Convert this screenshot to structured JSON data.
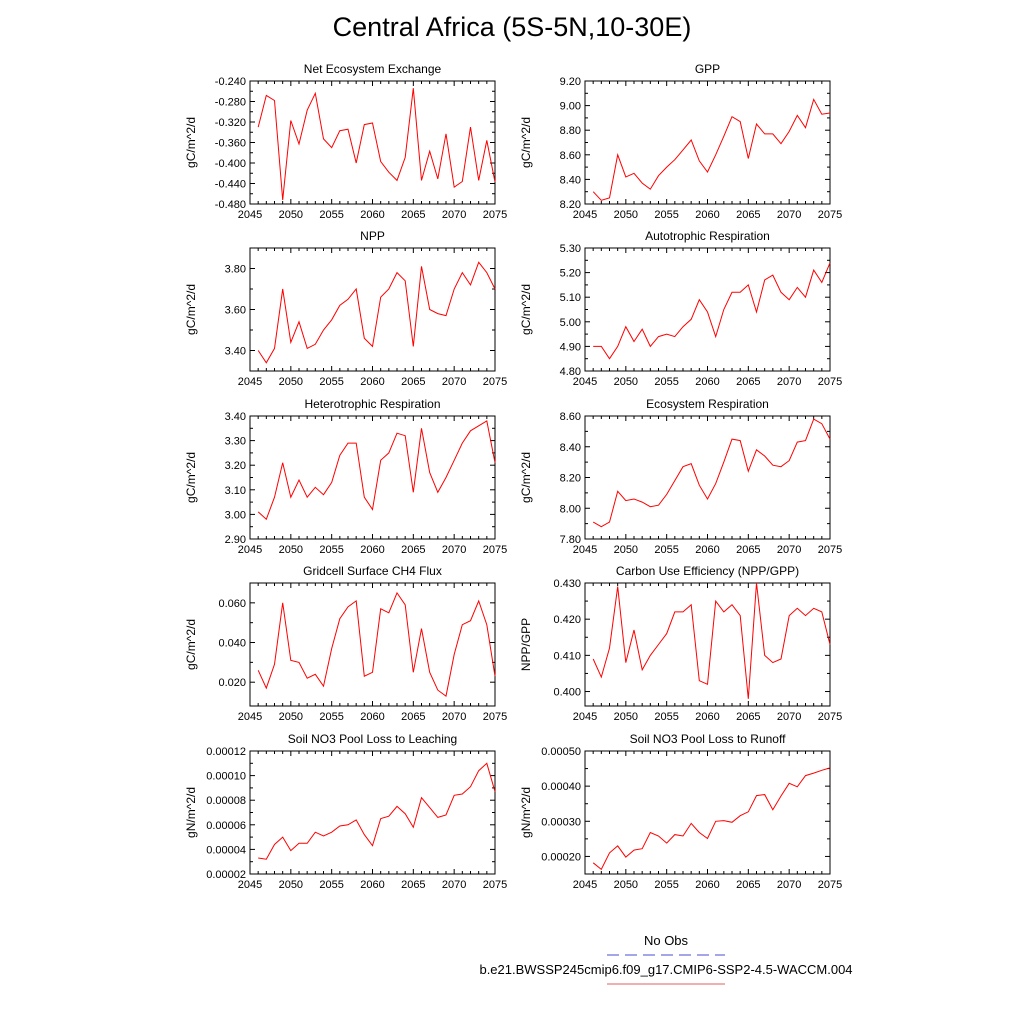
{
  "title": "Central Africa (5S-5N,10-30E)",
  "legend": {
    "obs_label": "No Obs",
    "obs_color": "#4b4bd6",
    "case_label": "b.e21.BWSSP245cmip6.f09_g17.CMIP6-SSP2-4.5-WACCM.004",
    "case_color": "#e06060"
  },
  "chart_data": [
    {
      "type": "line",
      "title": "Net Ecosystem Exchange",
      "ylabel": "gC/m^2/d",
      "xlim": [
        2045,
        2075
      ],
      "ylim": [
        -0.48,
        -0.24
      ],
      "x_ticks": [
        2045,
        2050,
        2055,
        2060,
        2065,
        2070,
        2075
      ],
      "y_ticks": [
        "-0.480",
        "-0.440",
        "-0.400",
        "-0.360",
        "-0.320",
        "-0.280",
        "-0.240"
      ],
      "y_tick_values": [
        -0.48,
        -0.44,
        -0.4,
        -0.36,
        -0.32,
        -0.28,
        -0.24
      ],
      "series": [
        {
          "color": "#ff0000",
          "x": [
            2046,
            2047,
            2048,
            2049,
            2050,
            2051,
            2052,
            2053,
            2054,
            2055,
            2056,
            2057,
            2058,
            2059,
            2060,
            2061,
            2062,
            2063,
            2064,
            2065,
            2066,
            2067,
            2068,
            2069,
            2070,
            2071,
            2072,
            2073,
            2074,
            2075
          ],
          "values": [
            -0.33,
            -0.268,
            -0.278,
            -0.472,
            -0.317,
            -0.363,
            -0.297,
            -0.264,
            -0.353,
            -0.37,
            -0.337,
            -0.334,
            -0.4,
            -0.325,
            -0.322,
            -0.397,
            -0.418,
            -0.434,
            -0.389,
            -0.254,
            -0.434,
            -0.377,
            -0.431,
            -0.343,
            -0.447,
            -0.436,
            -0.33,
            -0.434,
            -0.356,
            -0.437
          ]
        }
      ]
    },
    {
      "type": "line",
      "title": "GPP",
      "ylabel": "gC/m^2/d",
      "xlim": [
        2045,
        2075
      ],
      "ylim": [
        8.2,
        9.2
      ],
      "x_ticks": [
        2045,
        2050,
        2055,
        2060,
        2065,
        2070,
        2075
      ],
      "y_ticks": [
        "8.20",
        "8.40",
        "8.60",
        "8.80",
        "9.00",
        "9.20"
      ],
      "y_tick_values": [
        8.2,
        8.4,
        8.6,
        8.8,
        9.0,
        9.2
      ],
      "series": [
        {
          "color": "#ff0000",
          "x": [
            2046,
            2047,
            2048,
            2049,
            2050,
            2051,
            2052,
            2053,
            2054,
            2055,
            2056,
            2057,
            2058,
            2059,
            2060,
            2061,
            2062,
            2063,
            2064,
            2065,
            2066,
            2067,
            2068,
            2069,
            2070,
            2071,
            2072,
            2073,
            2074,
            2075
          ],
          "values": [
            8.3,
            8.23,
            8.25,
            8.6,
            8.42,
            8.45,
            8.37,
            8.32,
            8.43,
            8.5,
            8.56,
            8.64,
            8.72,
            8.55,
            8.46,
            8.6,
            8.75,
            8.91,
            8.87,
            8.57,
            8.85,
            8.77,
            8.77,
            8.69,
            8.79,
            8.92,
            8.82,
            9.05,
            8.93,
            8.94
          ]
        }
      ]
    },
    {
      "type": "line",
      "title": "NPP",
      "ylabel": "gC/m^2/d",
      "xlim": [
        2045,
        2075
      ],
      "ylim": [
        3.3,
        3.9
      ],
      "x_ticks": [
        2045,
        2050,
        2055,
        2060,
        2065,
        2070,
        2075
      ],
      "y_ticks": [
        "3.40",
        "3.60",
        "3.80"
      ],
      "y_tick_values": [
        3.4,
        3.6,
        3.8
      ],
      "series": [
        {
          "color": "#ff0000",
          "x": [
            2046,
            2047,
            2048,
            2049,
            2050,
            2051,
            2052,
            2053,
            2054,
            2055,
            2056,
            2057,
            2058,
            2059,
            2060,
            2061,
            2062,
            2063,
            2064,
            2065,
            2066,
            2067,
            2068,
            2069,
            2070,
            2071,
            2072,
            2073,
            2074,
            2075
          ],
          "values": [
            3.4,
            3.34,
            3.41,
            3.7,
            3.44,
            3.54,
            3.41,
            3.43,
            3.5,
            3.55,
            3.62,
            3.65,
            3.7,
            3.46,
            3.42,
            3.66,
            3.7,
            3.78,
            3.74,
            3.42,
            3.81,
            3.6,
            3.58,
            3.57,
            3.7,
            3.78,
            3.72,
            3.83,
            3.78,
            3.7
          ]
        }
      ]
    },
    {
      "type": "line",
      "title": "Autotrophic Respiration",
      "ylabel": "gC/m^2/d",
      "xlim": [
        2045,
        2075
      ],
      "ylim": [
        4.8,
        5.3
      ],
      "x_ticks": [
        2045,
        2050,
        2055,
        2060,
        2065,
        2070,
        2075
      ],
      "y_ticks": [
        "4.80",
        "4.90",
        "5.00",
        "5.10",
        "5.20",
        "5.30"
      ],
      "y_tick_values": [
        4.8,
        4.9,
        5.0,
        5.1,
        5.2,
        5.3
      ],
      "series": [
        {
          "color": "#ff0000",
          "x": [
            2046,
            2047,
            2048,
            2049,
            2050,
            2051,
            2052,
            2053,
            2054,
            2055,
            2056,
            2057,
            2058,
            2059,
            2060,
            2061,
            2062,
            2063,
            2064,
            2065,
            2066,
            2067,
            2068,
            2069,
            2070,
            2071,
            2072,
            2073,
            2074,
            2075
          ],
          "values": [
            4.9,
            4.9,
            4.85,
            4.9,
            4.98,
            4.92,
            4.97,
            4.9,
            4.94,
            4.95,
            4.94,
            4.98,
            5.01,
            5.09,
            5.04,
            4.94,
            5.05,
            5.12,
            5.12,
            5.15,
            5.04,
            5.17,
            5.19,
            5.12,
            5.09,
            5.14,
            5.1,
            5.21,
            5.16,
            5.24
          ]
        }
      ]
    },
    {
      "type": "line",
      "title": "Heterotrophic Respiration",
      "ylabel": "gC/m^2/d",
      "xlim": [
        2045,
        2075
      ],
      "ylim": [
        2.9,
        3.4
      ],
      "x_ticks": [
        2045,
        2050,
        2055,
        2060,
        2065,
        2070,
        2075
      ],
      "y_ticks": [
        "2.90",
        "3.00",
        "3.10",
        "3.20",
        "3.30",
        "3.40"
      ],
      "y_tick_values": [
        2.9,
        3.0,
        3.1,
        3.2,
        3.3,
        3.4
      ],
      "series": [
        {
          "color": "#ff0000",
          "x": [
            2046,
            2047,
            2048,
            2049,
            2050,
            2051,
            2052,
            2053,
            2054,
            2055,
            2056,
            2057,
            2058,
            2059,
            2060,
            2061,
            2062,
            2063,
            2064,
            2065,
            2066,
            2067,
            2068,
            2069,
            2070,
            2071,
            2072,
            2073,
            2074,
            2075
          ],
          "values": [
            3.01,
            2.98,
            3.07,
            3.21,
            3.07,
            3.14,
            3.07,
            3.11,
            3.08,
            3.13,
            3.24,
            3.29,
            3.29,
            3.07,
            3.02,
            3.22,
            3.25,
            3.33,
            3.32,
            3.09,
            3.35,
            3.17,
            3.09,
            3.15,
            3.22,
            3.29,
            3.34,
            3.36,
            3.38,
            3.21
          ]
        }
      ]
    },
    {
      "type": "line",
      "title": "Ecosystem Respiration",
      "ylabel": "gC/m^2/d",
      "xlim": [
        2045,
        2075
      ],
      "ylim": [
        7.8,
        8.6
      ],
      "x_ticks": [
        2045,
        2050,
        2055,
        2060,
        2065,
        2070,
        2075
      ],
      "y_ticks": [
        "7.80",
        "8.00",
        "8.20",
        "8.40",
        "8.60"
      ],
      "y_tick_values": [
        7.8,
        8.0,
        8.2,
        8.4,
        8.6
      ],
      "series": [
        {
          "color": "#ff0000",
          "x": [
            2046,
            2047,
            2048,
            2049,
            2050,
            2051,
            2052,
            2053,
            2054,
            2055,
            2056,
            2057,
            2058,
            2059,
            2060,
            2061,
            2062,
            2063,
            2064,
            2065,
            2066,
            2067,
            2068,
            2069,
            2070,
            2071,
            2072,
            2073,
            2074,
            2075
          ],
          "values": [
            7.91,
            7.88,
            7.91,
            8.11,
            8.05,
            8.06,
            8.04,
            8.01,
            8.02,
            8.09,
            8.18,
            8.27,
            8.29,
            8.15,
            8.06,
            8.16,
            8.3,
            8.45,
            8.44,
            8.24,
            8.38,
            8.34,
            8.28,
            8.27,
            8.31,
            8.43,
            8.44,
            8.58,
            8.55,
            8.45
          ]
        }
      ]
    },
    {
      "type": "line",
      "title": "Gridcell Surface CH4 Flux",
      "ylabel": "gC/m^2/d",
      "xlim": [
        2045,
        2075
      ],
      "ylim": [
        0.008,
        0.07
      ],
      "x_ticks": [
        2045,
        2050,
        2055,
        2060,
        2065,
        2070,
        2075
      ],
      "y_ticks": [
        "0.020",
        "0.040",
        "0.060"
      ],
      "y_tick_values": [
        0.02,
        0.04,
        0.06
      ],
      "series": [
        {
          "color": "#ff0000",
          "x": [
            2046,
            2047,
            2048,
            2049,
            2050,
            2051,
            2052,
            2053,
            2054,
            2055,
            2056,
            2057,
            2058,
            2059,
            2060,
            2061,
            2062,
            2063,
            2064,
            2065,
            2066,
            2067,
            2068,
            2069,
            2070,
            2071,
            2072,
            2073,
            2074,
            2075
          ],
          "values": [
            0.026,
            0.017,
            0.029,
            0.06,
            0.031,
            0.03,
            0.022,
            0.024,
            0.018,
            0.037,
            0.052,
            0.058,
            0.061,
            0.023,
            0.025,
            0.057,
            0.055,
            0.065,
            0.059,
            0.025,
            0.047,
            0.025,
            0.016,
            0.013,
            0.034,
            0.049,
            0.051,
            0.061,
            0.049,
            0.023
          ]
        }
      ]
    },
    {
      "type": "line",
      "title": "Carbon Use Efficiency (NPP/GPP)",
      "ylabel": "NPP/GPP",
      "xlim": [
        2045,
        2075
      ],
      "ylim": [
        0.396,
        0.43
      ],
      "x_ticks": [
        2045,
        2050,
        2055,
        2060,
        2065,
        2070,
        2075
      ],
      "y_ticks": [
        "0.400",
        "0.410",
        "0.420",
        "0.430"
      ],
      "y_tick_values": [
        0.4,
        0.41,
        0.42,
        0.43
      ],
      "series": [
        {
          "color": "#ff0000",
          "x": [
            2046,
            2047,
            2048,
            2049,
            2050,
            2051,
            2052,
            2053,
            2054,
            2055,
            2056,
            2057,
            2058,
            2059,
            2060,
            2061,
            2062,
            2063,
            2064,
            2065,
            2066,
            2067,
            2068,
            2069,
            2070,
            2071,
            2072,
            2073,
            2074,
            2075
          ],
          "values": [
            0.409,
            0.404,
            0.412,
            0.429,
            0.408,
            0.417,
            0.406,
            0.41,
            0.413,
            0.416,
            0.422,
            0.422,
            0.424,
            0.403,
            0.402,
            0.425,
            0.422,
            0.424,
            0.421,
            0.398,
            0.43,
            0.41,
            0.408,
            0.409,
            0.421,
            0.423,
            0.421,
            0.423,
            0.422,
            0.413
          ]
        }
      ]
    },
    {
      "type": "line",
      "title": "Soil NO3 Pool Loss to Leaching",
      "ylabel": "gN/m^2/d",
      "xlim": [
        2045,
        2075
      ],
      "ylim": [
        2e-05,
        0.00012
      ],
      "x_ticks": [
        2045,
        2050,
        2055,
        2060,
        2065,
        2070,
        2075
      ],
      "y_ticks": [
        "0.00002",
        "0.00004",
        "0.00006",
        "0.00008",
        "0.00010",
        "0.00012"
      ],
      "y_tick_values": [
        2e-05,
        4e-05,
        6e-05,
        8e-05,
        0.0001,
        0.00012
      ],
      "series": [
        {
          "color": "#ff0000",
          "x": [
            2046,
            2047,
            2048,
            2049,
            2050,
            2051,
            2052,
            2053,
            2054,
            2055,
            2056,
            2057,
            2058,
            2059,
            2060,
            2061,
            2062,
            2063,
            2064,
            2065,
            2066,
            2067,
            2068,
            2069,
            2070,
            2071,
            2072,
            2073,
            2074,
            2075
          ],
          "values": [
            3.3e-05,
            3.2e-05,
            4.4e-05,
            5e-05,
            3.9e-05,
            4.5e-05,
            4.5e-05,
            5.4e-05,
            5.1e-05,
            5.4e-05,
            5.9e-05,
            6e-05,
            6.4e-05,
            5.2e-05,
            4.3e-05,
            6.5e-05,
            6.7e-05,
            7.5e-05,
            6.9e-05,
            5.8e-05,
            8.2e-05,
            7.4e-05,
            6.6e-05,
            6.8e-05,
            8.4e-05,
            8.5e-05,
            9.1e-05,
            0.000104,
            0.00011,
            8.7e-05
          ]
        }
      ]
    },
    {
      "type": "line",
      "title": "Soil NO3 Pool Loss to Runoff",
      "ylabel": "gN/m^2/d",
      "xlim": [
        2045,
        2075
      ],
      "ylim": [
        0.00015,
        0.0005
      ],
      "x_ticks": [
        2045,
        2050,
        2055,
        2060,
        2065,
        2070,
        2075
      ],
      "y_ticks": [
        "0.00020",
        "0.00030",
        "0.00040",
        "0.00050"
      ],
      "y_tick_values": [
        0.0002,
        0.0003,
        0.0004,
        0.0005
      ],
      "series": [
        {
          "color": "#ff0000",
          "x": [
            2046,
            2047,
            2048,
            2049,
            2050,
            2051,
            2052,
            2053,
            2054,
            2055,
            2056,
            2057,
            2058,
            2059,
            2060,
            2061,
            2062,
            2063,
            2064,
            2065,
            2066,
            2067,
            2068,
            2069,
            2070,
            2071,
            2072,
            2073,
            2074,
            2075
          ],
          "values": [
            0.000182,
            0.000163,
            0.00021,
            0.00023,
            0.000198,
            0.000218,
            0.000222,
            0.000268,
            0.000258,
            0.000238,
            0.000262,
            0.000258,
            0.000294,
            0.000268,
            0.000251,
            0.0003,
            0.000302,
            0.000297,
            0.000316,
            0.000327,
            0.000373,
            0.000376,
            0.000333,
            0.000372,
            0.000408,
            0.000398,
            0.00043,
            0.000437,
            0.000445,
            0.000452
          ]
        }
      ]
    }
  ]
}
